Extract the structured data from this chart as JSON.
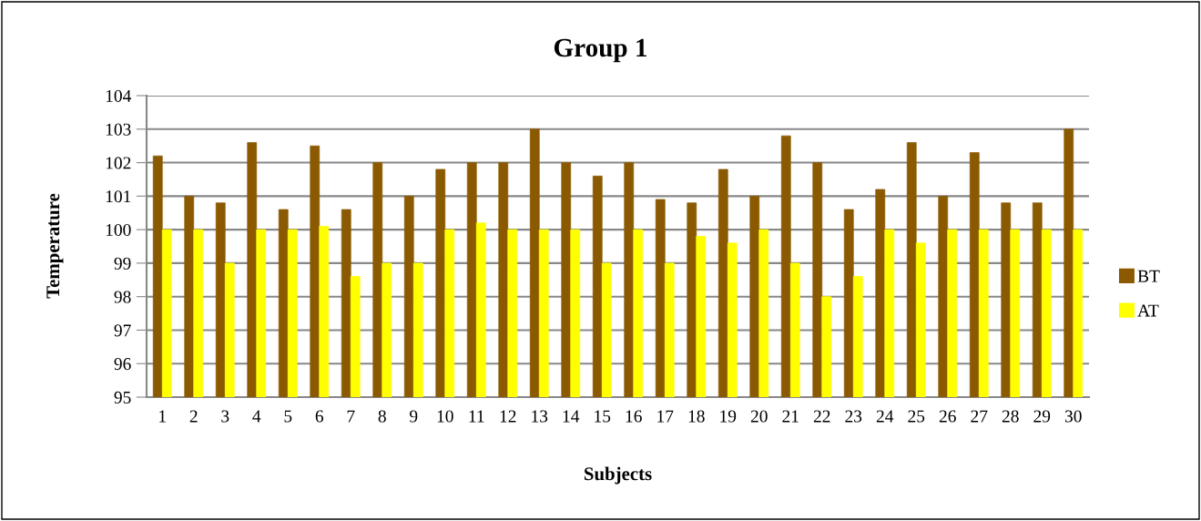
{
  "chart_data": {
    "type": "bar",
    "title": "Group 1",
    "xlabel": "Subjects",
    "ylabel": "Temperature",
    "categories": [
      "1",
      "2",
      "3",
      "4",
      "5",
      "6",
      "7",
      "8",
      "9",
      "10",
      "11",
      "12",
      "13",
      "14",
      "15",
      "16",
      "17",
      "18",
      "19",
      "20",
      "21",
      "22",
      "23",
      "24",
      "25",
      "26",
      "27",
      "28",
      "29",
      "30"
    ],
    "series": [
      {
        "name": "BT",
        "color": "#8b5a00",
        "values": [
          102.2,
          101,
          100.8,
          102.6,
          100.6,
          102.5,
          100.6,
          102,
          101,
          101.8,
          102,
          102,
          103,
          102,
          101.6,
          102,
          100.9,
          100.8,
          101.8,
          101,
          102.8,
          102,
          100.6,
          101.2,
          102.6,
          101,
          102.3,
          100.8,
          100.8,
          103
        ]
      },
      {
        "name": "AT",
        "color": "#ffff00",
        "values": [
          100,
          100,
          99,
          100,
          100,
          100.1,
          98.6,
          99,
          99,
          100,
          100.2,
          100,
          100,
          100,
          99,
          100,
          99,
          99.8,
          99.6,
          100,
          99,
          98,
          98.6,
          100,
          99.6,
          100,
          100,
          100,
          100,
          100
        ]
      }
    ],
    "ylim": [
      95,
      104
    ],
    "yticks": [
      95,
      96,
      97,
      98,
      99,
      100,
      101,
      102,
      103,
      104
    ],
    "grid": "y",
    "legend": "right"
  }
}
